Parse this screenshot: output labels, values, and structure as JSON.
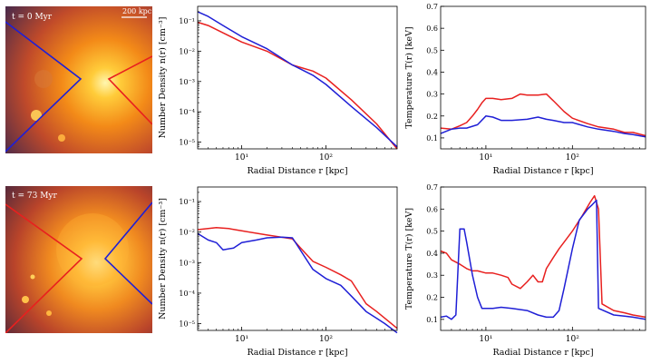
{
  "colors": {
    "red": "#e8201f",
    "blue": "#1f1fd6",
    "axis": "#000000"
  },
  "images": [
    {
      "label": "t = 0 Myr",
      "scalebar": "200 kpc"
    },
    {
      "label": "t = 73 Myr"
    }
  ],
  "chart_data": [
    {
      "type": "line",
      "xlabel": "Radial Distance r [kpc]",
      "ylabel": "Number Density n(r) [cm⁻³]",
      "xscale": "log",
      "yscale": "log",
      "xlim": [
        3,
        700
      ],
      "ylim": [
        6e-06,
        0.3
      ],
      "xticks": [
        10,
        100
      ],
      "xtick_labels": [
        "10¹",
        "10²"
      ],
      "yticks": [
        1e-05,
        0.0001,
        0.001,
        0.01,
        0.1
      ],
      "ytick_labels": [
        "10⁻⁵",
        "10⁻⁴",
        "10⁻³",
        "10⁻²",
        "10⁻¹"
      ],
      "series": [
        {
          "color": "red",
          "x": [
            3,
            4,
            6,
            10,
            20,
            40,
            70,
            100,
            200,
            400,
            700
          ],
          "y": [
            0.09,
            0.07,
            0.04,
            0.02,
            0.01,
            0.0035,
            0.0022,
            0.0013,
            0.00025,
            4e-05,
            6e-06
          ]
        },
        {
          "color": "blue",
          "x": [
            3,
            4,
            6,
            10,
            20,
            40,
            70,
            100,
            200,
            400,
            700
          ],
          "y": [
            0.2,
            0.14,
            0.07,
            0.03,
            0.012,
            0.0035,
            0.0016,
            0.0008,
            0.00015,
            3e-05,
            7e-06
          ]
        }
      ]
    },
    {
      "type": "line",
      "xlabel": "Radial Distance r [kpc]",
      "ylabel": "Temperature T(r) [keV]",
      "xscale": "log",
      "yscale": "linear",
      "xlim": [
        3,
        700
      ],
      "ylim": [
        0.05,
        0.7
      ],
      "xticks": [
        10,
        100
      ],
      "xtick_labels": [
        "10¹",
        "10²"
      ],
      "yticks": [
        0.1,
        0.2,
        0.3,
        0.4,
        0.5,
        0.6,
        0.7
      ],
      "ytick_labels": [
        "0.1",
        "0.2",
        "0.3",
        "0.4",
        "0.5",
        "0.6",
        "0.7"
      ],
      "series": [
        {
          "color": "red",
          "x": [
            3,
            4,
            5,
            6,
            7,
            8,
            9,
            10,
            12,
            15,
            20,
            25,
            30,
            40,
            50,
            60,
            80,
            100,
            150,
            200,
            300,
            400,
            500,
            700
          ],
          "y": [
            0.145,
            0.14,
            0.155,
            0.17,
            0.2,
            0.23,
            0.26,
            0.28,
            0.28,
            0.275,
            0.28,
            0.3,
            0.295,
            0.295,
            0.3,
            0.27,
            0.22,
            0.19,
            0.165,
            0.15,
            0.14,
            0.125,
            0.125,
            0.11
          ]
        },
        {
          "color": "blue",
          "x": [
            3,
            4,
            5,
            6,
            8,
            10,
            12,
            15,
            20,
            30,
            40,
            50,
            60,
            80,
            100,
            150,
            200,
            300,
            400,
            500,
            700
          ],
          "y": [
            0.12,
            0.14,
            0.145,
            0.145,
            0.16,
            0.2,
            0.195,
            0.18,
            0.18,
            0.185,
            0.195,
            0.185,
            0.18,
            0.17,
            0.17,
            0.15,
            0.14,
            0.13,
            0.12,
            0.115,
            0.105
          ]
        }
      ]
    },
    {
      "type": "line",
      "xlabel": "Radial Distance r [kpc]",
      "ylabel": "Number Density n(r) [cm⁻³]",
      "xscale": "log",
      "yscale": "log",
      "xlim": [
        3,
        700
      ],
      "ylim": [
        6e-06,
        0.3
      ],
      "xticks": [
        10,
        100
      ],
      "xtick_labels": [
        "10¹",
        "10²"
      ],
      "yticks": [
        1e-05,
        0.0001,
        0.001,
        0.01,
        0.1
      ],
      "ytick_labels": [
        "10⁻⁵",
        "10⁻⁴",
        "10⁻³",
        "10⁻²",
        "10⁻¹"
      ],
      "series": [
        {
          "color": "red",
          "x": [
            3,
            4,
            5,
            7,
            10,
            20,
            40,
            50,
            70,
            100,
            150,
            200,
            300,
            400,
            500,
            700
          ],
          "y": [
            0.012,
            0.013,
            0.014,
            0.013,
            0.011,
            0.008,
            0.006,
            0.003,
            0.0011,
            0.0007,
            0.0004,
            0.00025,
            4.5e-05,
            2.5e-05,
            1.5e-05,
            7e-06
          ]
        },
        {
          "color": "blue",
          "x": [
            3,
            4,
            5,
            6,
            8,
            10,
            15,
            20,
            30,
            40,
            50,
            70,
            100,
            150,
            200,
            300,
            400,
            500,
            700
          ],
          "y": [
            0.009,
            0.0055,
            0.0045,
            0.0026,
            0.003,
            0.0045,
            0.0055,
            0.0065,
            0.0068,
            0.0065,
            0.0025,
            0.0006,
            0.0003,
            0.00018,
            8e-05,
            2.5e-05,
            1.5e-05,
            1e-05,
            5e-06
          ]
        }
      ]
    },
    {
      "type": "line",
      "xlabel": "Radial Distance r [kpc]",
      "ylabel": "Temperature T(r) [keV]",
      "xscale": "log",
      "yscale": "linear",
      "xlim": [
        3,
        700
      ],
      "ylim": [
        0.05,
        0.7
      ],
      "xticks": [
        10,
        100
      ],
      "xtick_labels": [
        "10¹",
        "10²"
      ],
      "yticks": [
        0.1,
        0.2,
        0.3,
        0.4,
        0.5,
        0.6,
        0.7
      ],
      "ytick_labels": [
        "0.1",
        "0.2",
        "0.3",
        "0.4",
        "0.5",
        "0.6",
        "0.7"
      ],
      "series": [
        {
          "color": "red",
          "x": [
            3,
            3.5,
            4,
            5,
            6,
            7,
            8,
            10,
            12,
            15,
            18,
            20,
            25,
            30,
            35,
            40,
            45,
            50,
            60,
            70,
            80,
            100,
            130,
            160,
            180,
            200,
            220,
            300,
            400,
            500,
            700
          ],
          "y": [
            0.41,
            0.4,
            0.37,
            0.35,
            0.33,
            0.32,
            0.32,
            0.31,
            0.31,
            0.3,
            0.29,
            0.26,
            0.24,
            0.27,
            0.3,
            0.27,
            0.27,
            0.33,
            0.38,
            0.42,
            0.45,
            0.5,
            0.57,
            0.63,
            0.66,
            0.6,
            0.17,
            0.14,
            0.13,
            0.12,
            0.11
          ]
        },
        {
          "color": "blue",
          "x": [
            3,
            3.5,
            4,
            4.5,
            5,
            5.6,
            6,
            7,
            8,
            9,
            10,
            12,
            15,
            20,
            30,
            40,
            50,
            60,
            70,
            80,
            100,
            120,
            150,
            170,
            190,
            200,
            300,
            400,
            500,
            700
          ],
          "y": [
            0.11,
            0.115,
            0.1,
            0.12,
            0.51,
            0.51,
            0.45,
            0.3,
            0.2,
            0.15,
            0.15,
            0.15,
            0.155,
            0.15,
            0.14,
            0.12,
            0.11,
            0.11,
            0.14,
            0.24,
            0.42,
            0.55,
            0.6,
            0.62,
            0.64,
            0.15,
            0.12,
            0.115,
            0.11,
            0.1
          ]
        }
      ]
    }
  ]
}
